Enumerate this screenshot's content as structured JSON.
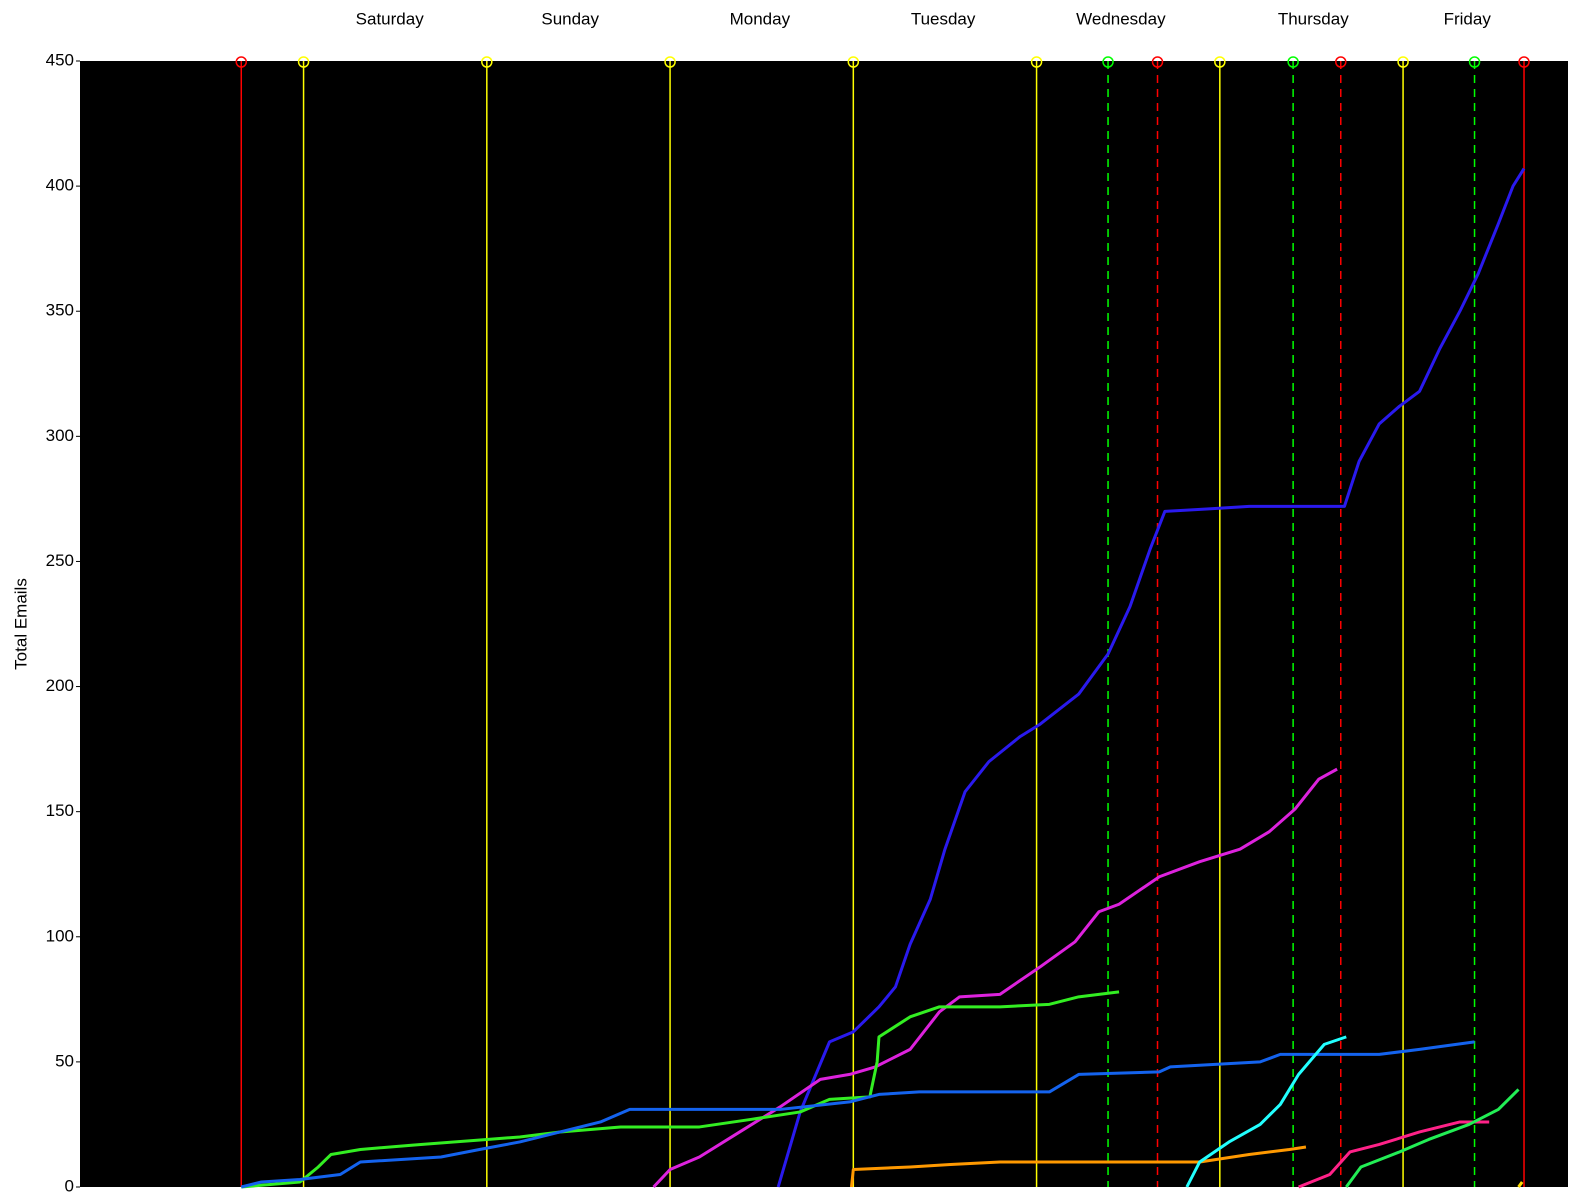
{
  "chart_data": {
    "type": "line",
    "ylabel": "Total Emails",
    "ylim": [
      0,
      450
    ],
    "yticks": [
      0,
      50,
      100,
      150,
      200,
      250,
      300,
      350,
      400,
      450
    ],
    "xlim": [
      -1.22,
      6.9
    ],
    "xticks": [
      {
        "value": 0.47,
        "label": "Saturday"
      },
      {
        "value": 1.455,
        "label": "Sunday"
      },
      {
        "value": 2.49,
        "label": "Monday"
      },
      {
        "value": 3.49,
        "label": "Tuesday"
      },
      {
        "value": 4.46,
        "label": "Wednesday"
      },
      {
        "value": 5.51,
        "label": "Thursday"
      },
      {
        "value": 6.35,
        "label": "Friday"
      }
    ],
    "background": "#000000",
    "vlines": [
      {
        "x": -0.34,
        "color": "#ff0000",
        "dashed": false
      },
      {
        "x": 0,
        "color": "#ffff00",
        "dashed": false
      },
      {
        "x": 1,
        "color": "#ffff00",
        "dashed": false
      },
      {
        "x": 2,
        "color": "#ffff00",
        "dashed": false
      },
      {
        "x": 3,
        "color": "#ffff00",
        "dashed": false
      },
      {
        "x": 4,
        "color": "#ffff00",
        "dashed": false
      },
      {
        "x": 4.39,
        "color": "#00ff00",
        "dashed": true
      },
      {
        "x": 4.66,
        "color": "#ff0000",
        "dashed": true
      },
      {
        "x": 5,
        "color": "#ffff00",
        "dashed": false
      },
      {
        "x": 5.4,
        "color": "#00ff00",
        "dashed": true
      },
      {
        "x": 5.66,
        "color": "#ff0000",
        "dashed": true
      },
      {
        "x": 6,
        "color": "#ffff00",
        "dashed": false
      },
      {
        "x": 6.39,
        "color": "#00ff00",
        "dashed": true
      },
      {
        "x": 6.66,
        "color": "#ff0000",
        "dashed": false
      }
    ],
    "series": [
      {
        "color": "#2a1aee",
        "x": [
          2.59,
          2.71,
          2.87,
          3.0,
          3.14,
          3.23,
          3.31,
          3.42,
          3.5,
          3.61,
          3.74,
          3.91,
          4.02,
          4.23,
          4.39,
          4.51,
          4.62,
          4.7,
          4.94,
          5.16,
          5.68,
          5.76,
          5.87,
          5.98,
          6.09,
          6.2,
          6.31,
          6.41,
          6.52,
          6.6,
          6.66
        ],
        "values": [
          0,
          30,
          58,
          62,
          72,
          80,
          97,
          115,
          135,
          158,
          170,
          180,
          185,
          197,
          213,
          232,
          255,
          270,
          271,
          272,
          272,
          290,
          305,
          312,
          318,
          335,
          350,
          365,
          385,
          400,
          407
        ]
      },
      {
        "color": "#dd22dd",
        "x": [
          1.91,
          2.0,
          2.16,
          2.38,
          2.6,
          2.82,
          2.98,
          3.12,
          3.31,
          3.47,
          3.58,
          3.8,
          4.02,
          4.21,
          4.34,
          4.45,
          4.67,
          4.89,
          5.11,
          5.27,
          5.41,
          5.54,
          5.64
        ],
        "values": [
          0,
          7,
          12,
          22,
          32,
          43,
          45,
          48,
          55,
          70,
          76,
          77,
          88,
          98,
          110,
          113,
          124,
          130,
          135,
          142,
          151,
          163,
          167
        ]
      },
      {
        "color": "#33ee22",
        "x": [
          -0.34,
          -0.02,
          0.08,
          0.15,
          0.31,
          0.64,
          1.0,
          1.18,
          1.4,
          1.73,
          2.16,
          2.44,
          2.71,
          2.87,
          3.09,
          3.13,
          3.14,
          3.31,
          3.47,
          3.8,
          4.07,
          4.23,
          4.45
        ],
        "values": [
          0,
          2,
          8,
          13,
          15,
          17,
          19,
          20,
          22,
          24,
          24,
          27,
          30,
          35,
          36,
          50,
          60,
          68,
          72,
          72,
          73,
          76,
          78
        ]
      },
      {
        "color": "#1463ee",
        "x": [
          -0.34,
          -0.23,
          -0.02,
          0.2,
          0.31,
          0.75,
          0.96,
          1.18,
          1.4,
          1.62,
          1.78,
          2.6,
          2.98,
          3.14,
          3.36,
          4.07,
          4.23,
          4.67,
          4.73,
          5.22,
          5.33,
          5.87,
          6.09,
          6.39
        ],
        "values": [
          0,
          2,
          3,
          5,
          10,
          12,
          15,
          18,
          22,
          26,
          31,
          31,
          34,
          37,
          38,
          38,
          45,
          46,
          48,
          50,
          53,
          53,
          55,
          58
        ]
      },
      {
        "color": "#ff9900",
        "x": [
          2.99,
          3.0,
          3.31,
          3.53,
          3.8,
          4.89,
          5.16,
          5.38,
          5.47
        ],
        "values": [
          0,
          7,
          8,
          9,
          10,
          10,
          13,
          15,
          16
        ]
      },
      {
        "color": "#22ffff",
        "x": [
          4.82,
          4.89,
          5.05,
          5.22,
          5.33,
          5.43,
          5.57,
          5.69
        ],
        "values": [
          0,
          10,
          18,
          25,
          33,
          45,
          57,
          60
        ]
      },
      {
        "color": "#ff2288",
        "x": [
          5.43,
          5.6,
          5.71,
          5.87,
          6.09,
          6.31,
          6.47
        ],
        "values": [
          0,
          5,
          14,
          17,
          22,
          26,
          26
        ]
      },
      {
        "color": "#22ee55",
        "x": [
          5.69,
          5.77,
          5.98,
          6.14,
          6.36,
          6.52,
          6.63
        ],
        "values": [
          0,
          8,
          14,
          19,
          25,
          31,
          39
        ]
      },
      {
        "color": "#ffdd00",
        "x": [
          6.63,
          6.65
        ],
        "values": [
          0,
          2
        ]
      }
    ]
  }
}
